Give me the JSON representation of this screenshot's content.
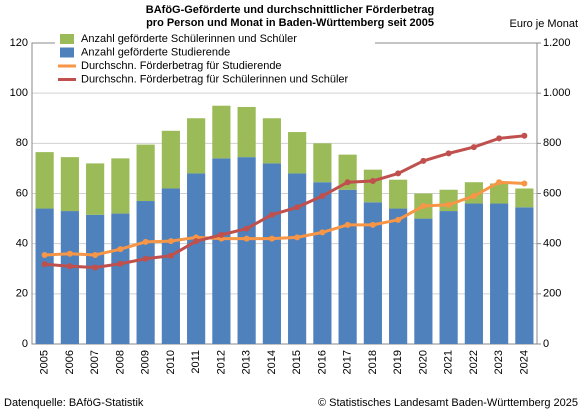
{
  "chart_data": {
    "type": "bar_line",
    "title": "BAföG-Geförderte und durchschnittlicher Förderbetrag",
    "subtitle": "pro Person und Monat in Baden-Württemberg seit 2005",
    "y2_label": "Euro je Monat",
    "source": "Datenquelle: BAföG-Statistik",
    "copyright": "© Statistisches Landesamt Baden-Württemberg 2025",
    "categories": [
      "2005",
      "2006",
      "2007",
      "2008",
      "2009",
      "2010",
      "2011",
      "2012",
      "2013",
      "2014",
      "2015",
      "2016",
      "2017",
      "2018",
      "2019",
      "2020",
      "2021",
      "2022",
      "2023",
      "2024"
    ],
    "series": [
      {
        "name": "Anzahl geförderte Schülerinnen und Schüler",
        "color": "#9bbb59",
        "kind": "bar",
        "values": [
          22.5,
          21.5,
          20.5,
          22,
          22.5,
          23,
          22,
          21,
          20,
          18,
          16.5,
          15.5,
          14,
          13,
          11.5,
          10,
          8.5,
          8.5,
          8,
          7.5
        ]
      },
      {
        "name": "Anzahl geförderte Studierende",
        "color": "#4f81bd",
        "kind": "bar",
        "values": [
          54,
          53,
          51.5,
          52,
          57,
          62,
          68,
          74,
          74.5,
          72,
          68,
          64.5,
          61.5,
          56.5,
          54,
          50,
          53,
          56,
          56,
          54.5
        ]
      },
      {
        "name": "Durchschn. Förderbetrag für Studierende",
        "color": "#f79646",
        "kind": "line",
        "axis": "y2",
        "values": [
          355,
          360,
          355,
          378,
          407,
          410,
          425,
          420,
          420,
          420,
          425,
          445,
          475,
          475,
          495,
          550,
          555,
          590,
          645,
          640
        ]
      },
      {
        "name": "Durchschn. Förderbetrag für Schülerinnen und Schüler",
        "color": "#c0504d",
        "kind": "line",
        "axis": "y2",
        "values": [
          318,
          310,
          305,
          320,
          340,
          352,
          410,
          435,
          460,
          515,
          545,
          590,
          645,
          650,
          680,
          730,
          760,
          785,
          820,
          830
        ]
      }
    ],
    "ylim": [
      0,
      120
    ],
    "yticks": [
      0,
      20,
      40,
      60,
      80,
      100,
      120
    ],
    "y2lim": [
      0,
      1200
    ],
    "y2ticks": [
      0,
      200,
      400,
      600,
      800,
      {
        "value": 1000,
        "label": "1.000"
      },
      {
        "value": 1200,
        "label": "1.200"
      }
    ],
    "grid": true
  }
}
